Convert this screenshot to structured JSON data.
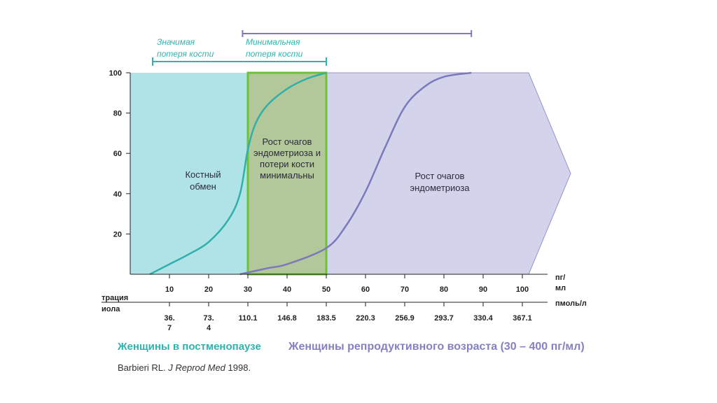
{
  "chart_data": {
    "type": "line",
    "title": "",
    "ylabel": "",
    "xlim": [
      0,
      113
    ],
    "ylim": [
      0,
      100
    ],
    "y_ticks": [
      20,
      40,
      60,
      80,
      100
    ],
    "x_ticks": [
      10,
      20,
      30,
      40,
      50,
      60,
      70,
      80,
      90,
      100
    ],
    "x_unit": "пг/\nмл",
    "secondary_axis": {
      "label": "концентрация эстрадиола",
      "label_visible": "трация\nиола",
      "unit": "пмоль/л",
      "ticks": [
        {
          "x": 10,
          "label": "36.\n7"
        },
        {
          "x": 20,
          "label": "73.\n4"
        },
        {
          "x": 30,
          "label": "110.1"
        },
        {
          "x": 40,
          "label": "146.8"
        },
        {
          "x": 50,
          "label": "183.5"
        },
        {
          "x": 60,
          "label": "220.3"
        },
        {
          "x": 70,
          "label": "256.9"
        },
        {
          "x": 80,
          "label": "293.7"
        },
        {
          "x": 90,
          "label": "330.4"
        },
        {
          "x": 100,
          "label": "367.1"
        }
      ]
    },
    "zones": [
      {
        "name": "Костный обмен",
        "label": "Костный\nобмен",
        "x_range": [
          0,
          30
        ],
        "color": "#b0e3e8"
      },
      {
        "name": "Рост очагов эндометриоза и потери кости минимальны",
        "label": "Рост очагов\nэндометриоза и\nпотери кости\nминимальны",
        "x_range": [
          30,
          50
        ],
        "color": "#b3c89a",
        "border": "#6cc23a"
      },
      {
        "name": "Рост очагов эндометриоза",
        "label": "Рост очагов\nэндометриоза",
        "x_range": [
          50,
          113
        ],
        "color": "#d3d3ec"
      }
    ],
    "series": [
      {
        "color": "#2fb0a8",
        "x": [
          5,
          10,
          15,
          20,
          25,
          28,
          30,
          32,
          35,
          40,
          45,
          50
        ],
        "y": [
          0,
          5,
          10,
          16,
          27,
          40,
          62,
          75,
          84,
          92,
          97,
          100
        ]
      },
      {
        "color": "#7d78bb",
        "x": [
          28,
          35,
          40,
          50,
          55,
          60,
          65,
          70,
          75,
          80,
          87
        ],
        "y": [
          0,
          3,
          5,
          13,
          24,
          41,
          63,
          83,
          93,
          98,
          100
        ]
      }
    ],
    "brackets": [
      {
        "label": "Значимая\nпотеря кости",
        "x_range": [
          5,
          50
        ],
        "color": "#2fb5ad"
      },
      {
        "label": "Минимальная\nпотеря кости",
        "x_range": [
          29,
          87
        ],
        "color": "#7d78bb"
      }
    ]
  },
  "footer": {
    "postmenopause": "Женщины в постменопаузе",
    "reproductive": "Женщины репродуктивного возраста (30 – 400 пг/мл)",
    "citation_author": "Barbieri RL.",
    "citation_journal": "J Reprod Med",
    "citation_year": "1998."
  }
}
